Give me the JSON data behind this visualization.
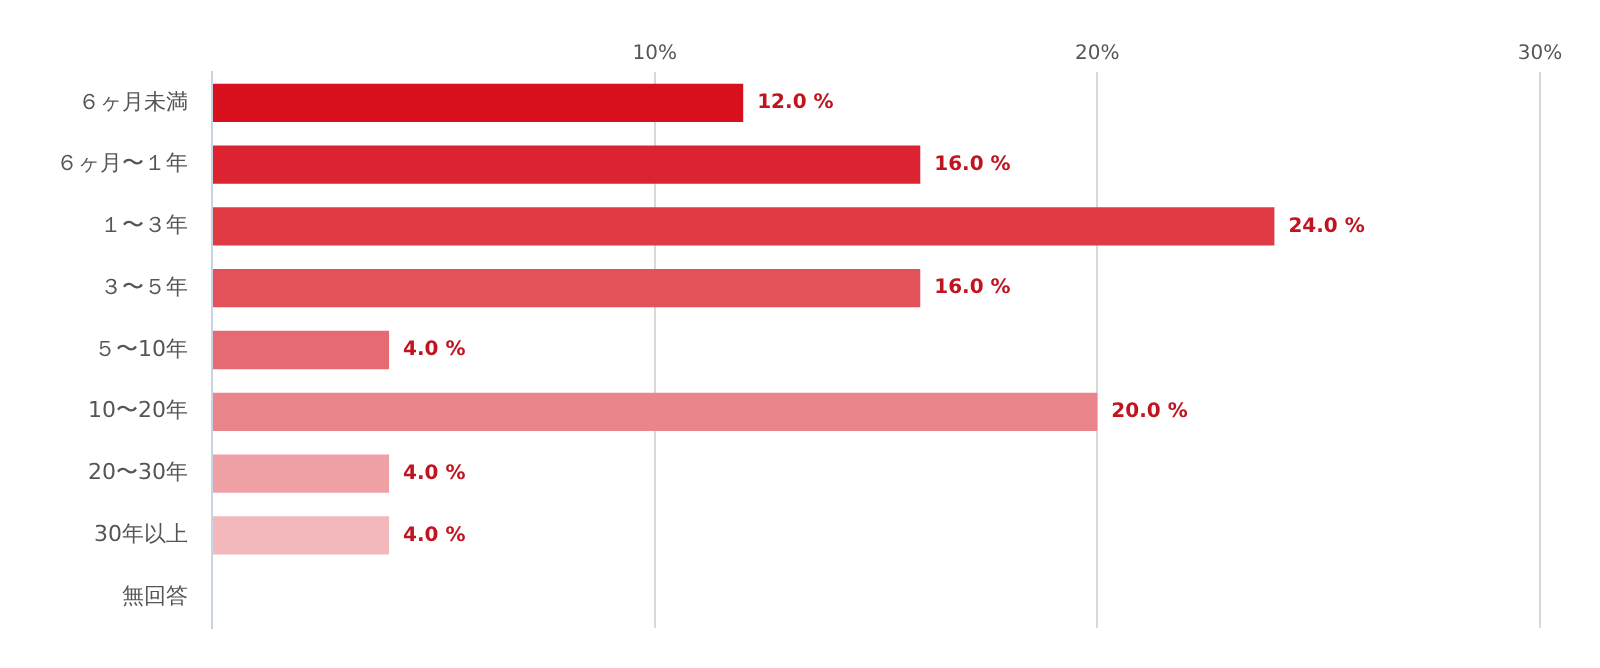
{
  "chart_data": {
    "type": "bar",
    "orientation": "horizontal",
    "categories": [
      "６ヶ月未満",
      "６ヶ月〜１年",
      "１〜３年",
      "３〜５年",
      "５〜10年",
      "10〜20年",
      "20〜30年",
      "30年以上",
      "無回答"
    ],
    "values": [
      12,
      16,
      24,
      16,
      4,
      20,
      4,
      4,
      null
    ],
    "colors": [
      "#d80f1d",
      "#dc2331",
      "#e03a45",
      "#e3525b",
      "#e66a72",
      "#ea858b",
      "#eea0a5",
      "#f2b8bc",
      "#f5c8cb"
    ],
    "value_labels": [
      "12.0 %",
      "16.0 %",
      "24.0 %",
      "16.0 %",
      "4.0 %",
      "20.0 %",
      "4.0 %",
      "4.0 %",
      null
    ],
    "xlim": [
      0,
      30
    ],
    "xticks": [
      {
        "value": 0,
        "label": null
      },
      {
        "value": 10,
        "label": "10%"
      },
      {
        "value": 20,
        "label": "20%"
      },
      {
        "value": 30,
        "label": "30%"
      }
    ],
    "grid": "x",
    "legend": false
  }
}
